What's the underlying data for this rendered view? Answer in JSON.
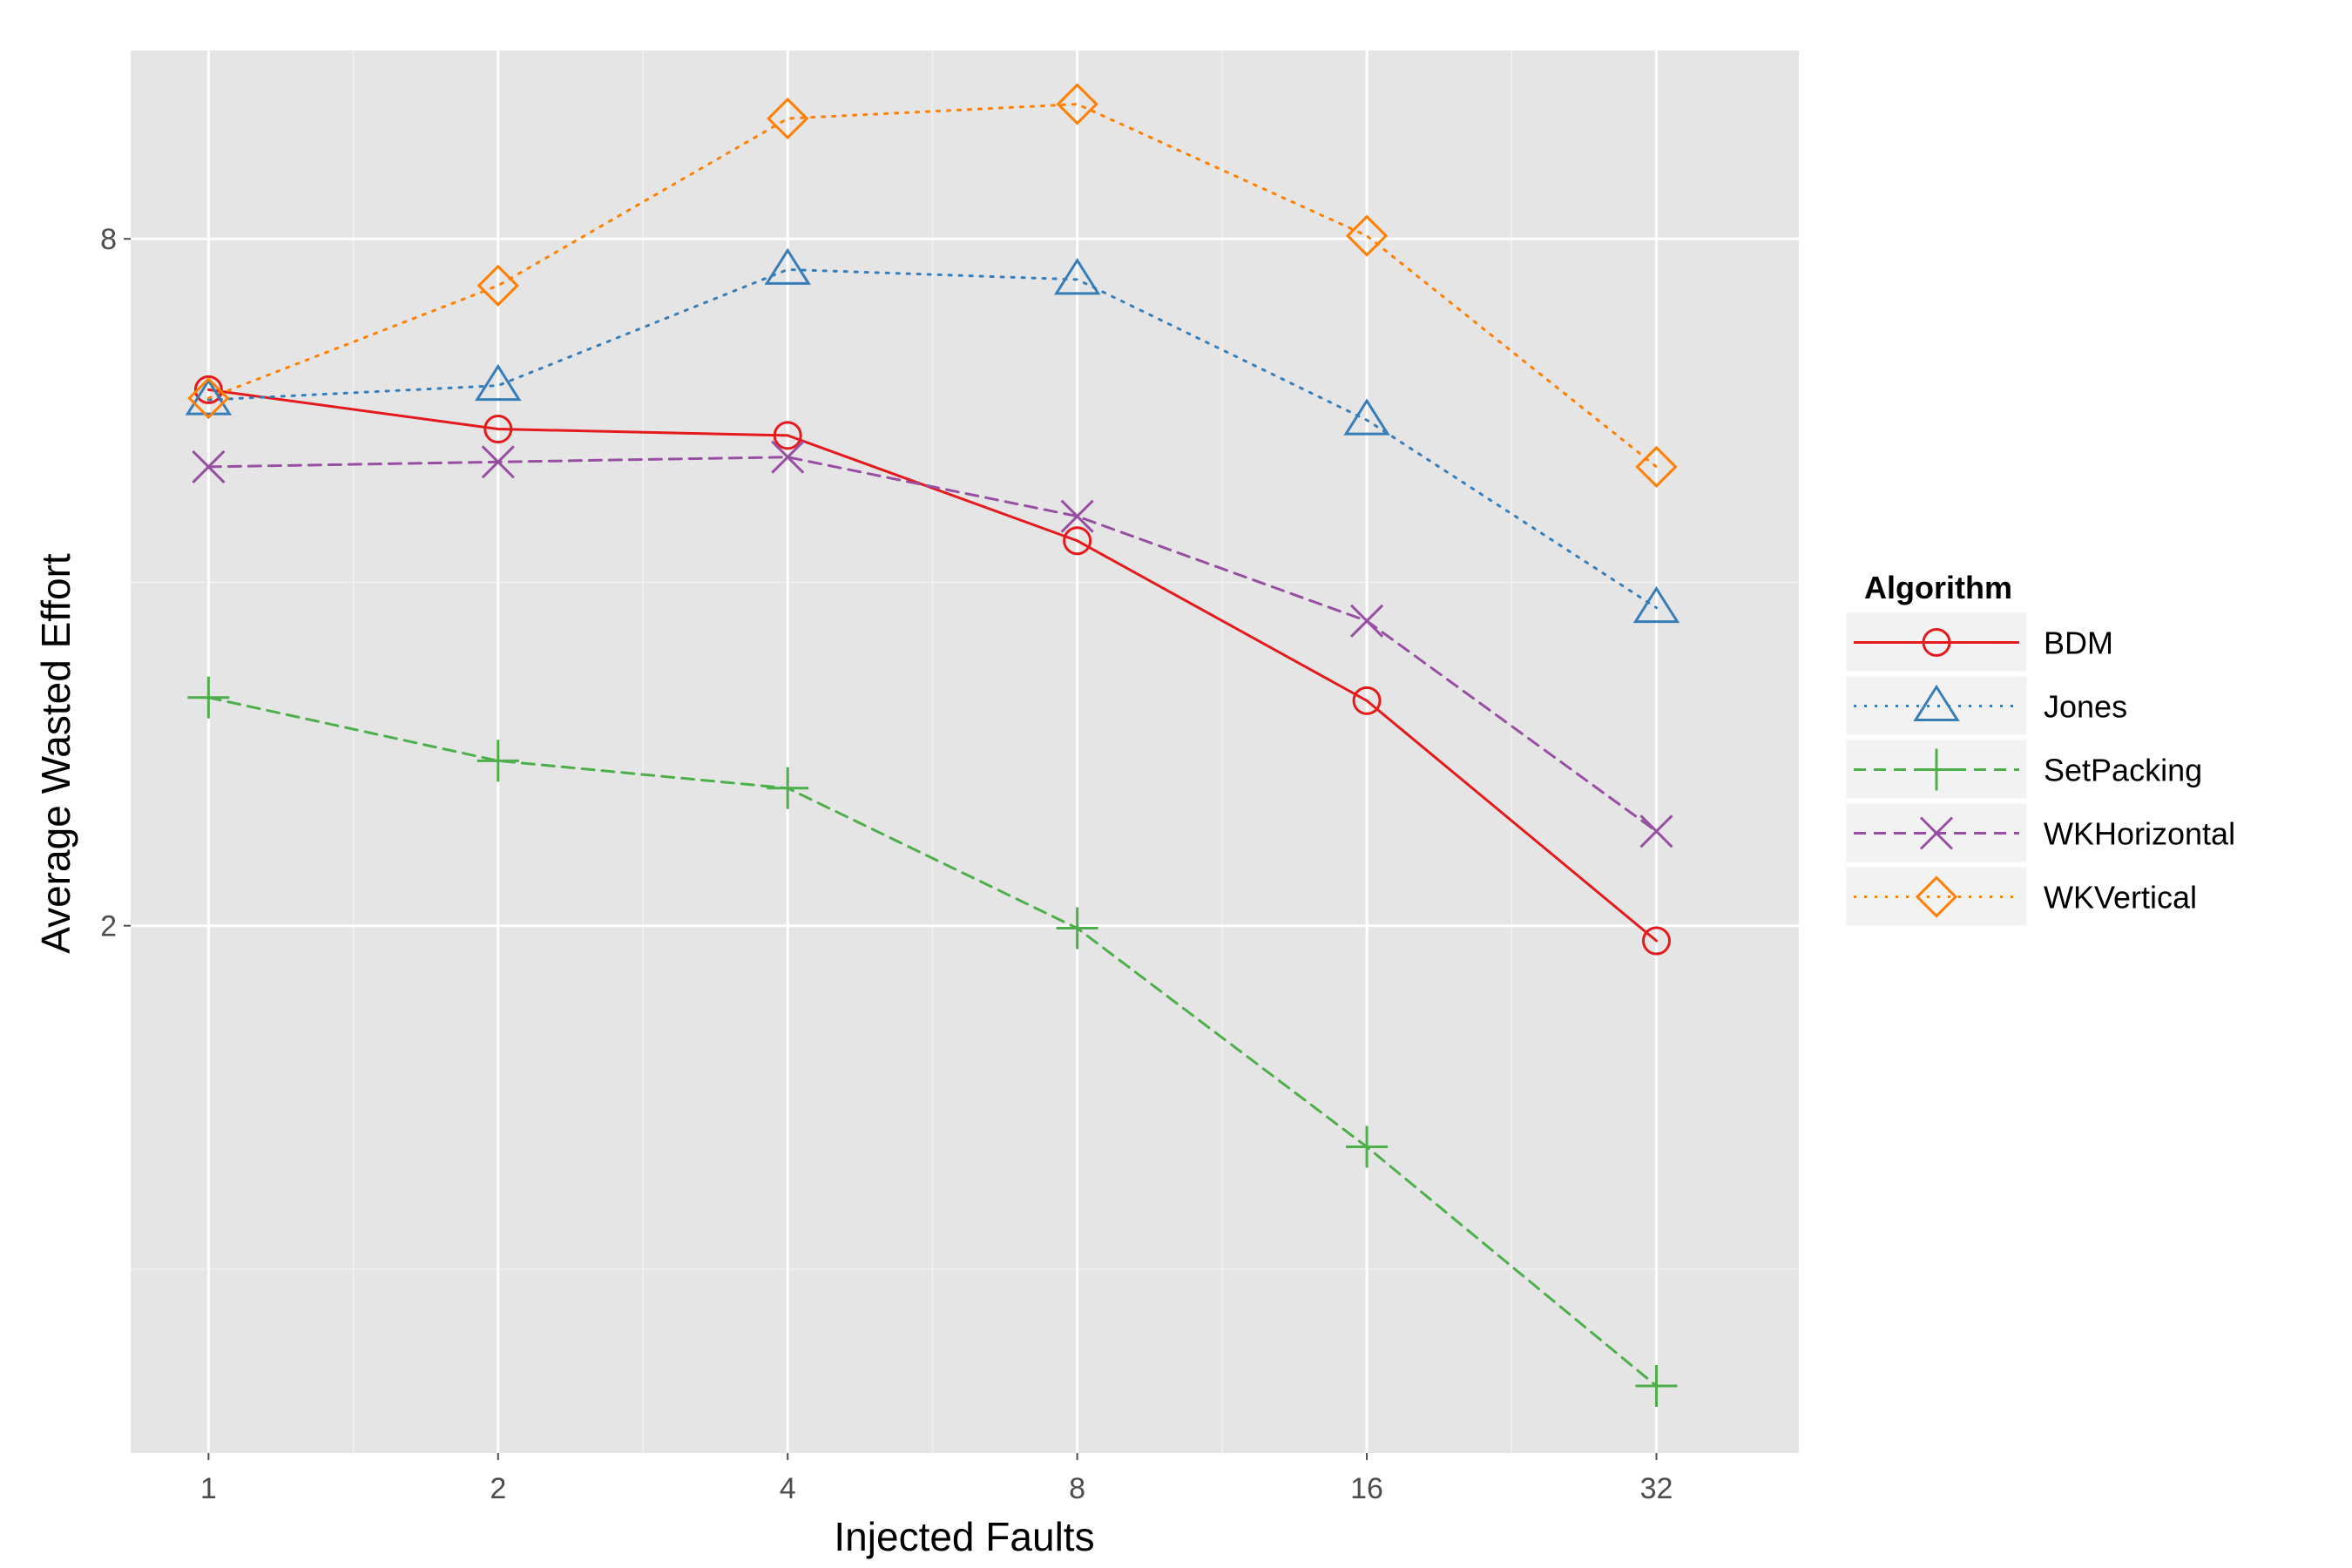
{
  "chart_data": {
    "type": "line",
    "xlabel": "Injected Faults",
    "ylabel": "Average Wasted Effort",
    "x_scale": "log2",
    "y_scale": "log",
    "x": [
      1,
      2,
      4,
      8,
      16,
      32
    ],
    "x_tick_labels": [
      "1",
      "2",
      "4",
      "8",
      "16",
      "32"
    ],
    "y_ticks": [
      2,
      8
    ],
    "y_tick_labels": [
      "2",
      "8"
    ],
    "xlim": [
      0.83,
      45
    ],
    "ylim": [
      0.69,
      11.7
    ],
    "grid": true,
    "legend": {
      "title": "Algorithm",
      "position": "right"
    },
    "series": [
      {
        "name": "BDM",
        "color": "#e41a1c",
        "dash": "solid",
        "marker": "circle",
        "values": [
          5.9,
          5.45,
          5.38,
          4.35,
          3.15,
          1.94
        ]
      },
      {
        "name": "Jones",
        "color": "#377eb8",
        "dash": "dotted",
        "marker": "triangle",
        "values": [
          5.78,
          5.95,
          7.52,
          7.37,
          5.55,
          3.8
        ]
      },
      {
        "name": "SetPacking",
        "color": "#4daf4a",
        "dash": "dashed",
        "marker": "plus",
        "values": [
          3.17,
          2.79,
          2.64,
          1.99,
          1.28,
          0.79
        ]
      },
      {
        "name": "WKHorizontal",
        "color": "#984ea3",
        "dash": "dashed",
        "marker": "x",
        "values": [
          5.05,
          5.1,
          5.15,
          4.57,
          3.7,
          2.42
        ]
      },
      {
        "name": "WKVertical",
        "color": "#ff7f00",
        "dash": "dotted",
        "marker": "diamond",
        "values": [
          5.8,
          7.28,
          10.2,
          10.5,
          8.05,
          5.05
        ]
      }
    ]
  }
}
